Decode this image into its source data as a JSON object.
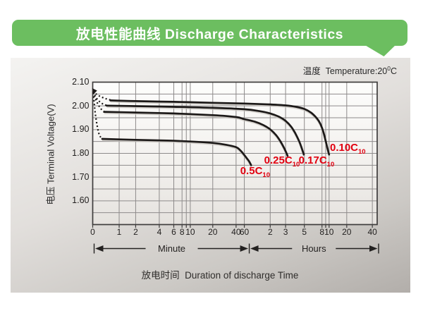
{
  "banner": {
    "title": "放电性能曲线 Discharge Characteristics"
  },
  "chart_data": {
    "type": "line",
    "temperature": {
      "pre": "温度  Temperature:20",
      "sup": "0",
      "post": "C"
    },
    "ylabel": "电压 Terminal Voltage(V)",
    "xlabel": "放电时间  Duration of discharge Time",
    "x_units": [
      {
        "label": "Minute"
      },
      {
        "label": "Hours"
      }
    ],
    "y_range": [
      1.5,
      2.1
    ],
    "y_grid_step": 0.05,
    "y_tick_labels": [
      {
        "v": 2.1,
        "label": "2.10"
      },
      {
        "v": 2.0,
        "label": "2.00"
      },
      {
        "v": 1.9,
        "label": "1.90"
      },
      {
        "v": 1.8,
        "label": "1.80"
      },
      {
        "v": 1.7,
        "label": "1.70"
      },
      {
        "v": 1.6,
        "label": "1.60"
      }
    ],
    "x_ticks": [
      {
        "t": 0,
        "f": 0.0,
        "label": "0"
      },
      {
        "t": 1,
        "f": 0.093,
        "label": "1"
      },
      {
        "t": 2,
        "f": 0.151,
        "label": "2"
      },
      {
        "t": 4,
        "f": 0.234,
        "label": "4"
      },
      {
        "t": 6,
        "f": 0.285,
        "label": "6"
      },
      {
        "t": 8,
        "f": 0.314,
        "label": "8"
      },
      {
        "t": 9,
        "f": 0.329,
        "label": ""
      },
      {
        "t": 10,
        "f": 0.343,
        "label": "10"
      },
      {
        "t": 20,
        "f": 0.422,
        "label": "20"
      },
      {
        "t": 40,
        "f": 0.504,
        "label": "40"
      },
      {
        "t": 60,
        "f": 0.533,
        "label": "60"
      },
      {
        "t": 120,
        "f": 0.624,
        "label": "2"
      },
      {
        "t": 180,
        "f": 0.678,
        "label": "3"
      },
      {
        "t": 300,
        "f": 0.744,
        "label": "5"
      },
      {
        "t": 480,
        "f": 0.806,
        "label": "8"
      },
      {
        "t": 540,
        "f": 0.819,
        "label": ""
      },
      {
        "t": 600,
        "f": 0.831,
        "label": "10"
      },
      {
        "t": 1200,
        "f": 0.893,
        "label": "20"
      },
      {
        "t": 2400,
        "f": 0.983,
        "label": "40"
      }
    ],
    "minute_boundary_t": 60,
    "series": [
      {
        "label": {
          "text": "0.10C",
          "sub": "10"
        },
        "label_anchor": {
          "t": 620,
          "v": 1.85
        },
        "dotted": [
          [
            0.02,
            2.063
          ],
          [
            0.08,
            2.055
          ],
          [
            0.18,
            2.046
          ],
          [
            0.32,
            2.038
          ],
          [
            0.5,
            2.03
          ],
          [
            0.67,
            2.025
          ]
        ],
        "solid": [
          [
            0.67,
            2.023
          ],
          [
            2,
            2.02
          ],
          [
            6,
            2.017
          ],
          [
            20,
            2.013
          ],
          [
            60,
            2.01
          ],
          [
            120,
            2.006
          ],
          [
            180,
            2.002
          ],
          [
            240,
            1.996
          ],
          [
            300,
            1.987
          ],
          [
            360,
            1.971
          ],
          [
            420,
            1.947
          ],
          [
            460,
            1.924
          ],
          [
            500,
            1.892
          ],
          [
            540,
            1.852
          ],
          [
            570,
            1.821
          ],
          [
            600,
            1.795
          ]
        ]
      },
      {
        "label": {
          "text": "0.17C",
          "sub": "10"
        },
        "label_anchor": {
          "t": 257,
          "v": 1.796
        },
        "dotted": [
          [
            0.02,
            2.06
          ],
          [
            0.08,
            2.045
          ],
          [
            0.16,
            2.03
          ],
          [
            0.28,
            2.016
          ],
          [
            0.42,
            2.006
          ],
          [
            0.53,
            2.002
          ]
        ],
        "solid": [
          [
            0.53,
            2.001
          ],
          [
            2,
            1.999
          ],
          [
            6,
            1.996
          ],
          [
            20,
            1.992
          ],
          [
            60,
            1.986
          ],
          [
            90,
            1.978
          ],
          [
            120,
            1.968
          ],
          [
            150,
            1.955
          ],
          [
            180,
            1.937
          ],
          [
            210,
            1.912
          ],
          [
            235,
            1.884
          ],
          [
            260,
            1.852
          ],
          [
            280,
            1.821
          ],
          [
            296,
            1.795
          ]
        ]
      },
      {
        "label": {
          "text": "0.25C",
          "sub": "10"
        },
        "label_anchor": {
          "t": 102,
          "v": 1.796
        },
        "dotted": [
          [
            0.02,
            2.058
          ],
          [
            0.07,
            2.04
          ],
          [
            0.14,
            2.02
          ],
          [
            0.24,
            1.999
          ],
          [
            0.34,
            1.984
          ],
          [
            0.43,
            1.977
          ]
        ],
        "solid": [
          [
            0.43,
            1.975
          ],
          [
            2,
            1.972
          ],
          [
            6,
            1.968
          ],
          [
            20,
            1.961
          ],
          [
            40,
            1.953
          ],
          [
            60,
            1.944
          ],
          [
            80,
            1.933
          ],
          [
            100,
            1.919
          ],
          [
            120,
            1.901
          ],
          [
            140,
            1.877
          ],
          [
            158,
            1.849
          ],
          [
            175,
            1.819
          ],
          [
            190,
            1.79
          ]
        ]
      },
      {
        "label": {
          "text": "0.5C",
          "sub": "10"
        },
        "label_anchor": {
          "t": 49,
          "v": 1.752
        },
        "dotted": [
          [
            0.02,
            2.055
          ],
          [
            0.05,
            2.02
          ],
          [
            0.08,
            1.985
          ],
          [
            0.12,
            1.95
          ],
          [
            0.17,
            1.915
          ],
          [
            0.23,
            1.885
          ],
          [
            0.3,
            1.868
          ],
          [
            0.36,
            1.862
          ]
        ],
        "solid": [
          [
            0.36,
            1.861
          ],
          [
            2,
            1.857
          ],
          [
            5,
            1.854
          ],
          [
            10,
            1.85
          ],
          [
            20,
            1.844
          ],
          [
            30,
            1.836
          ],
          [
            40,
            1.826
          ],
          [
            48,
            1.815
          ],
          [
            55,
            1.802
          ],
          [
            62,
            1.786
          ],
          [
            68,
            1.767
          ],
          [
            72,
            1.75
          ]
        ]
      }
    ],
    "start_marker": {
      "t": 0.02,
      "v": 2.063
    }
  },
  "colors": {
    "banner_green": "#6cbe60",
    "label_red": "#e10010",
    "curve_black": "#1c1918",
    "curve_shadow": "#c8c3be",
    "grid_gray": "#8e8b8b",
    "border_gray": "#3f3d3d",
    "text_dark": "#232120",
    "panel_top": "#f4f3f1",
    "panel_bottom": "#b2aeaa"
  }
}
